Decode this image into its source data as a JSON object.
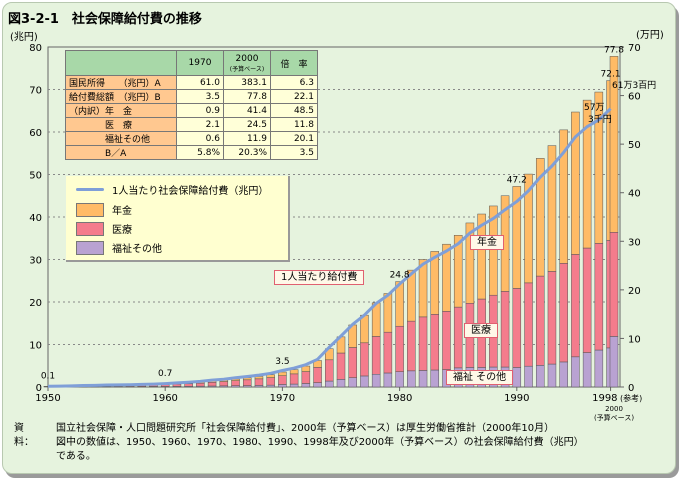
{
  "title": "図3-2-1　社会保障給付費の推移",
  "table": {
    "headers": [
      "1970",
      "2000",
      "(予算ベース)",
      "倍　率"
    ],
    "rows": [
      {
        "label": "国民所得　　（兆円）A",
        "v1970": "61.0",
        "v2000": "383.1",
        "ratio": "6.3"
      },
      {
        "label": "給付費総額　（兆円）B",
        "v1970": "3.5",
        "v2000": "77.8",
        "ratio": "22.1"
      },
      {
        "label": "（内訳）年　金",
        "v1970": "0.9",
        "v2000": "41.4",
        "ratio": "48.5"
      },
      {
        "label": "　　　　医　療",
        "v1970": "2.1",
        "v2000": "24.5",
        "ratio": "11.8"
      },
      {
        "label": "　　　　福祉その他",
        "v1970": "0.6",
        "v2000": "11.9",
        "ratio": "20.1"
      },
      {
        "label": "　　　　B／A",
        "v1970": "5.8%",
        "v2000": "20.3%",
        "ratio": "3.5"
      }
    ]
  },
  "legend": [
    "1人当たり社会保障給付費（兆円）",
    "年金",
    "医療",
    "福祉その他"
  ],
  "callouts": {
    "pension": "年金",
    "medical": "医療",
    "welfare": "福祉 その他",
    "percap": "1人当たり給付費"
  },
  "source": {
    "key": "資料：",
    "lines": [
      "国立社会保障・人口問題研究所「社会保障給付費」、2000年（予算ベース）は厚生労働省推計（2000年10月）",
      "図中の数値は、1950、1960、1970、1980、1990、1998年及び2000年（予算ベース）の社会保障給付費（兆円）",
      "である。"
    ]
  },
  "colors": {
    "pension": "#ffbb66",
    "medical": "#f47c8c",
    "welfare": "#b9a2d2",
    "line": "#7f9fd8"
  },
  "chart_data": {
    "type": "bar",
    "stacked": true,
    "ylabel_left": "(兆円)",
    "ylabel_right": "(万円)",
    "ylim_left": [
      0,
      80
    ],
    "ylim_right": [
      0,
      70
    ],
    "yticks_left": [
      "0",
      "10",
      "20",
      "30",
      "40",
      "50",
      "60",
      "70",
      "80"
    ],
    "yticks_right": [
      "0",
      "10",
      "20",
      "30",
      "40",
      "50",
      "60",
      "70"
    ],
    "xticks": [
      "1950",
      "1960",
      "1970",
      "1980",
      "1990",
      "1998"
    ],
    "extra_x_label": [
      "(参考)",
      "2000",
      "(予算ベース)"
    ],
    "years": [
      1950,
      1951,
      1952,
      1953,
      1954,
      1955,
      1956,
      1957,
      1958,
      1959,
      1960,
      1961,
      1962,
      1963,
      1964,
      1965,
      1966,
      1967,
      1968,
      1969,
      1970,
      1971,
      1972,
      1973,
      1974,
      1975,
      1976,
      1977,
      1978,
      1979,
      1980,
      1981,
      1982,
      1983,
      1984,
      1985,
      1986,
      1987,
      1988,
      1989,
      1990,
      1991,
      1992,
      1993,
      1994,
      1995,
      1996,
      1997,
      1998
    ],
    "series": [
      {
        "name": "年金",
        "values": [
          0.01,
          0.02,
          0.02,
          0.03,
          0.03,
          0.04,
          0.04,
          0.05,
          0.06,
          0.08,
          0.11,
          0.14,
          0.18,
          0.22,
          0.27,
          0.32,
          0.39,
          0.47,
          0.56,
          0.68,
          0.86,
          1.0,
          1.3,
          1.6,
          2.6,
          3.8,
          5.3,
          6.5,
          7.9,
          9.1,
          10.5,
          12.0,
          13.5,
          14.8,
          15.8,
          16.9,
          18.9,
          20.0,
          21.0,
          22.5,
          24.0,
          25.6,
          27.7,
          29.6,
          31.4,
          33.5,
          34.8,
          35.6,
          37.6
        ]
      },
      {
        "name": "医療",
        "values": [
          0.08,
          0.09,
          0.12,
          0.15,
          0.17,
          0.23,
          0.24,
          0.26,
          0.31,
          0.34,
          0.41,
          0.5,
          0.59,
          0.71,
          0.87,
          1.01,
          1.18,
          1.35,
          1.54,
          1.77,
          2.06,
          2.4,
          2.8,
          3.6,
          5.0,
          6.2,
          7.1,
          7.8,
          8.9,
          9.6,
          10.7,
          11.7,
          12.6,
          13.1,
          13.7,
          14.3,
          15.1,
          16.1,
          16.9,
          17.8,
          18.6,
          19.6,
          21.0,
          21.8,
          23.2,
          24.1,
          24.6,
          25.1,
          25.3
        ]
      },
      {
        "name": "福祉その他",
        "values": [
          0.04,
          0.05,
          0.06,
          0.08,
          0.09,
          0.12,
          0.12,
          0.12,
          0.13,
          0.14,
          0.13,
          0.15,
          0.17,
          0.2,
          0.24,
          0.27,
          0.31,
          0.34,
          0.38,
          0.44,
          0.6,
          0.69,
          0.83,
          1.03,
          1.4,
          1.8,
          2.2,
          2.6,
          3.0,
          3.3,
          3.6,
          3.8,
          3.9,
          4.0,
          4.1,
          4.5,
          4.6,
          4.6,
          4.7,
          4.7,
          4.6,
          4.9,
          5.1,
          5.4,
          5.9,
          7.1,
          8.1,
          8.7,
          9.2
        ]
      }
    ],
    "ref_2000": {
      "label": "2000",
      "pension": 41.4,
      "medical": 24.5,
      "welfare": 11.9
    },
    "per_capita_man_yen": [
      0.16,
      0.19,
      0.23,
      0.3,
      0.33,
      0.4,
      0.44,
      0.47,
      0.54,
      0.6,
      0.7,
      0.84,
      0.99,
      1.17,
      1.42,
      1.6,
      1.9,
      2.16,
      2.45,
      2.82,
      3.4,
      3.9,
      4.6,
      5.7,
      8.2,
      10.5,
      12.9,
      14.8,
      17.2,
      18.9,
      21.2,
      23.3,
      25.3,
      26.7,
      28.0,
      29.5,
      31.7,
      33.3,
      34.7,
      36.5,
      38.2,
      40.4,
      43.2,
      45.5,
      48.3,
      51.5,
      53.6,
      55.0,
      57.3
    ],
    "data_labels": [
      {
        "year": 1950,
        "text": "0.1"
      },
      {
        "year": 1960,
        "text": "0.7"
      },
      {
        "year": 1970,
        "text": "3.5"
      },
      {
        "year": 1980,
        "text": "24.8"
      },
      {
        "year": 1990,
        "text": "47.2"
      },
      {
        "year": 1998,
        "text": "72.1"
      },
      {
        "year": 2000,
        "text": "77.8"
      }
    ],
    "line_labels": [
      "57万",
      "3千円",
      "61万3百円"
    ]
  }
}
